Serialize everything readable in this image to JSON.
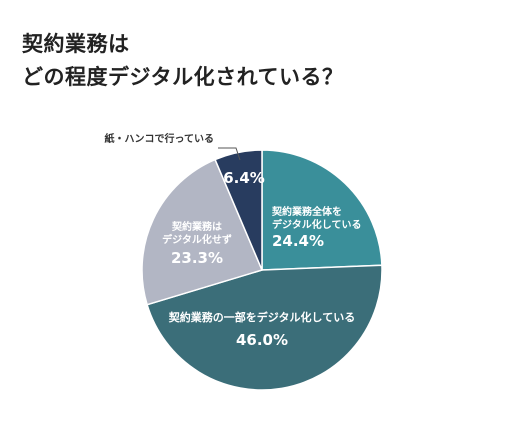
{
  "heading": {
    "line1": "契約業務は",
    "line2": "どの程度デジタル化されている？"
  },
  "chart_data": {
    "type": "pie",
    "slices": [
      {
        "label_lines": [
          "契約業務全体を",
          "デジタル化している"
        ],
        "value": 24.4,
        "value_label": "24.4%",
        "color": "#3a8f9a"
      },
      {
        "label_lines": [
          "契約業務の一部をデジタル化している"
        ],
        "value": 46.0,
        "value_label": "46.0%",
        "color": "#3b6e79"
      },
      {
        "label_lines": [
          "契約業務は",
          "デジタル化せず"
        ],
        "value": 23.3,
        "value_label": "23.3%",
        "color": "#b2b6c4"
      },
      {
        "label_lines": [
          "紙・ハンコで行っている"
        ],
        "value": 6.4,
        "value_label": "6.4%",
        "color": "#283c5f"
      }
    ],
    "start_angle": "12 o'clock",
    "direction": "clockwise",
    "label_text_color": "#ffffff",
    "callout_text_color": "#333333"
  }
}
